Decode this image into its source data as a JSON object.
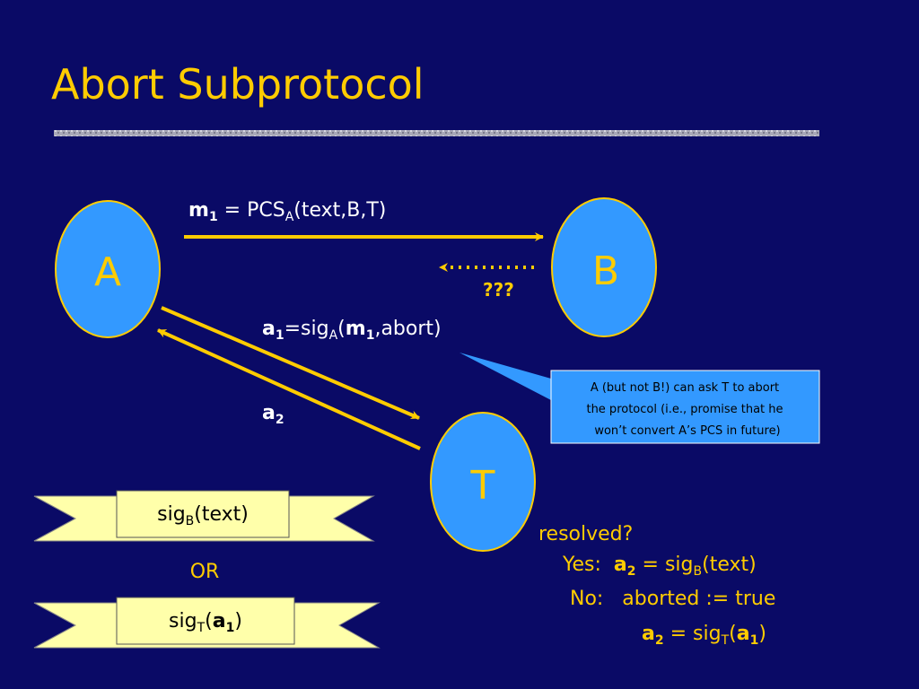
{
  "title": "Abort Subprotocol",
  "nodes": [
    {
      "label": "A"
    },
    {
      "label": "B"
    },
    {
      "label": "T"
    }
  ],
  "messages": {
    "m1": [
      "m",
      "1",
      " = PCS",
      "A",
      "(text,B,T)"
    ],
    "unknown": "???",
    "a1": [
      "a",
      "1",
      "=sig",
      "A",
      "(",
      "m",
      "1",
      ",abort)"
    ],
    "a2": [
      "a",
      "2"
    ]
  },
  "callout": [
    "A (but not B!) can ask T to abort",
    "the protocol (i.e., promise that he",
    "won’t convert A’s PCS in future)"
  ],
  "banners": [
    [
      "sig",
      "B",
      "(text)"
    ],
    [
      "sig",
      "T",
      "(",
      "a",
      "1",
      ")"
    ]
  ],
  "or": "OR",
  "resolution": {
    "question": "resolved?",
    "yes": [
      "Yes:  ",
      "a",
      "2",
      " = sig",
      "B",
      "(text)"
    ],
    "no": "No:   aborted := true",
    "no_value": [
      "a",
      "2",
      " = sig",
      "T",
      "(",
      "a",
      "1",
      ")"
    ]
  }
}
